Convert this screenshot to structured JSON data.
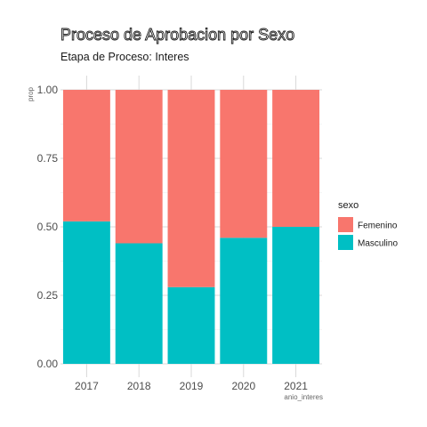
{
  "chart_data": {
    "type": "bar",
    "stacked": true,
    "title": "Proceso de Aprobacion por Sexo",
    "subtitle": "Etapa de Proceso: Interes",
    "xlabel": "anio_interes",
    "ylabel": "prop",
    "categories": [
      "2017",
      "2018",
      "2019",
      "2020",
      "2021"
    ],
    "ylim": [
      0,
      1
    ],
    "yticks": [
      "0.00",
      "0.25",
      "0.50",
      "0.75",
      "1.00"
    ],
    "series": [
      {
        "name": "Masculino",
        "color": "#00BFC4",
        "values": [
          0.52,
          0.44,
          0.28,
          0.46,
          0.5
        ]
      },
      {
        "name": "Femenino",
        "color": "#F8766D",
        "values": [
          0.48,
          0.56,
          0.72,
          0.54,
          0.5
        ]
      }
    ],
    "legend": {
      "title": "sexo",
      "placement": "right",
      "entries": [
        "Femenino",
        "Masculino"
      ]
    },
    "grid": true
  }
}
